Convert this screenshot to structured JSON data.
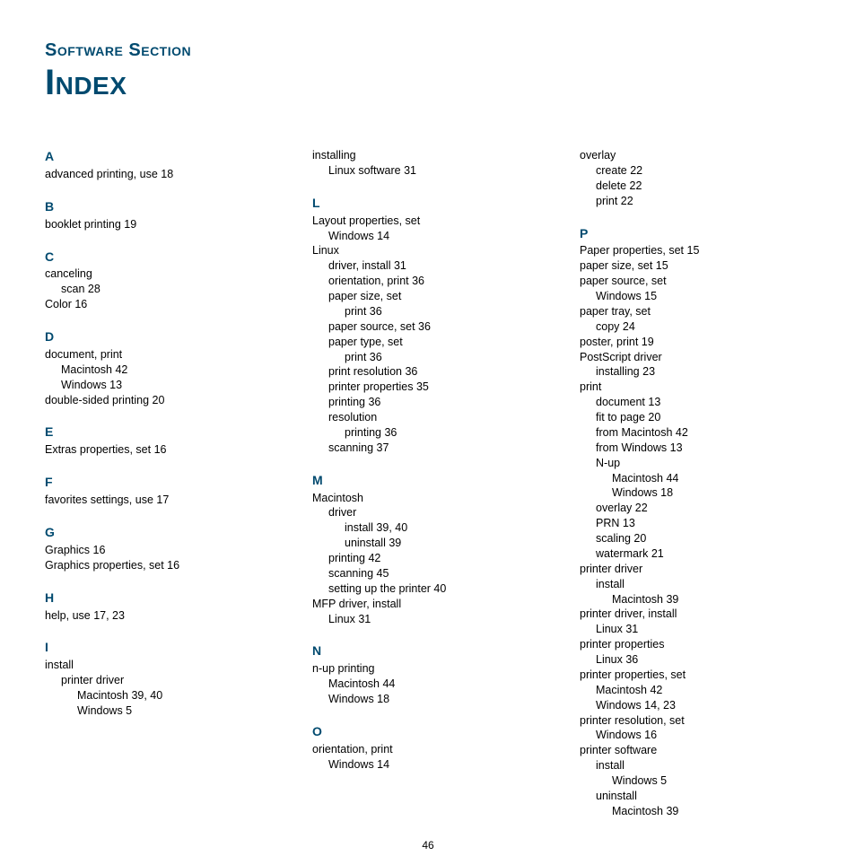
{
  "section_title": "Software Section",
  "main_title": "Index",
  "page_number": "46",
  "col1": [
    {
      "type": "letter",
      "text": "A"
    },
    {
      "type": "entry",
      "level": 0,
      "text": "advanced printing, use 18"
    },
    {
      "type": "letter",
      "text": "B"
    },
    {
      "type": "entry",
      "level": 0,
      "text": "booklet printing 19"
    },
    {
      "type": "letter",
      "text": "C"
    },
    {
      "type": "entry",
      "level": 0,
      "text": "canceling"
    },
    {
      "type": "entry",
      "level": 1,
      "text": "scan 28"
    },
    {
      "type": "entry",
      "level": 0,
      "text": "Color 16"
    },
    {
      "type": "letter",
      "text": "D"
    },
    {
      "type": "entry",
      "level": 0,
      "text": "document, print"
    },
    {
      "type": "entry",
      "level": 1,
      "text": "Macintosh 42"
    },
    {
      "type": "entry",
      "level": 1,
      "text": "Windows 13"
    },
    {
      "type": "entry",
      "level": 0,
      "text": "double-sided printing 20"
    },
    {
      "type": "letter",
      "text": "E"
    },
    {
      "type": "entry",
      "level": 0,
      "text": "Extras properties, set 16"
    },
    {
      "type": "letter",
      "text": "F"
    },
    {
      "type": "entry",
      "level": 0,
      "text": "favorites settings, use 17"
    },
    {
      "type": "letter",
      "text": "G"
    },
    {
      "type": "entry",
      "level": 0,
      "text": "Graphics 16"
    },
    {
      "type": "entry",
      "level": 0,
      "text": "Graphics properties, set 16"
    },
    {
      "type": "letter",
      "text": "H"
    },
    {
      "type": "entry",
      "level": 0,
      "text": "help, use 17, 23"
    },
    {
      "type": "letter",
      "text": "I"
    },
    {
      "type": "entry",
      "level": 0,
      "text": "install"
    },
    {
      "type": "entry",
      "level": 1,
      "text": "printer driver"
    },
    {
      "type": "entry",
      "level": 2,
      "text": "Macintosh 39, 40"
    },
    {
      "type": "entry",
      "level": 2,
      "text": "Windows 5"
    }
  ],
  "col2": [
    {
      "type": "entry",
      "level": 0,
      "text": "installing"
    },
    {
      "type": "entry",
      "level": 1,
      "text": "Linux software 31"
    },
    {
      "type": "letter",
      "text": "L"
    },
    {
      "type": "entry",
      "level": 0,
      "text": "Layout properties, set"
    },
    {
      "type": "entry",
      "level": 1,
      "text": "Windows 14"
    },
    {
      "type": "entry",
      "level": 0,
      "text": "Linux"
    },
    {
      "type": "entry",
      "level": 1,
      "text": "driver, install 31"
    },
    {
      "type": "entry",
      "level": 1,
      "text": "orientation, print 36"
    },
    {
      "type": "entry",
      "level": 1,
      "text": "paper size, set"
    },
    {
      "type": "entry",
      "level": 2,
      "text": "print 36"
    },
    {
      "type": "entry",
      "level": 1,
      "text": "paper source, set 36"
    },
    {
      "type": "entry",
      "level": 1,
      "text": "paper type, set"
    },
    {
      "type": "entry",
      "level": 2,
      "text": "print 36"
    },
    {
      "type": "entry",
      "level": 1,
      "text": "print resolution 36"
    },
    {
      "type": "entry",
      "level": 1,
      "text": "printer properties 35"
    },
    {
      "type": "entry",
      "level": 1,
      "text": "printing 36"
    },
    {
      "type": "entry",
      "level": 1,
      "text": "resolution"
    },
    {
      "type": "entry",
      "level": 2,
      "text": "printing 36"
    },
    {
      "type": "entry",
      "level": 1,
      "text": "scanning 37"
    },
    {
      "type": "letter",
      "text": "M"
    },
    {
      "type": "entry",
      "level": 0,
      "text": "Macintosh"
    },
    {
      "type": "entry",
      "level": 1,
      "text": "driver"
    },
    {
      "type": "entry",
      "level": 2,
      "text": "install 39, 40"
    },
    {
      "type": "entry",
      "level": 2,
      "text": "uninstall 39"
    },
    {
      "type": "entry",
      "level": 1,
      "text": "printing 42"
    },
    {
      "type": "entry",
      "level": 1,
      "text": "scanning 45"
    },
    {
      "type": "entry",
      "level": 1,
      "text": "setting up the printer 40"
    },
    {
      "type": "entry",
      "level": 0,
      "text": "MFP driver, install"
    },
    {
      "type": "entry",
      "level": 1,
      "text": "Linux 31"
    },
    {
      "type": "letter",
      "text": "N"
    },
    {
      "type": "entry",
      "level": 0,
      "text": "n-up printing"
    },
    {
      "type": "entry",
      "level": 1,
      "text": "Macintosh 44"
    },
    {
      "type": "entry",
      "level": 1,
      "text": "Windows 18"
    },
    {
      "type": "letter",
      "text": "O"
    },
    {
      "type": "entry",
      "level": 0,
      "text": "orientation, print"
    },
    {
      "type": "entry",
      "level": 1,
      "text": "Windows 14"
    }
  ],
  "col3": [
    {
      "type": "entry",
      "level": 0,
      "text": "overlay"
    },
    {
      "type": "entry",
      "level": 1,
      "text": "create 22"
    },
    {
      "type": "entry",
      "level": 1,
      "text": "delete 22"
    },
    {
      "type": "entry",
      "level": 1,
      "text": "print 22"
    },
    {
      "type": "letter",
      "text": "P"
    },
    {
      "type": "entry",
      "level": 0,
      "text": "Paper properties, set 15"
    },
    {
      "type": "entry",
      "level": 0,
      "text": "paper size, set 15"
    },
    {
      "type": "entry",
      "level": 0,
      "text": "paper source, set"
    },
    {
      "type": "entry",
      "level": 1,
      "text": "Windows 15"
    },
    {
      "type": "entry",
      "level": 0,
      "text": "paper tray, set"
    },
    {
      "type": "entry",
      "level": 1,
      "text": "copy 24"
    },
    {
      "type": "entry",
      "level": 0,
      "text": "poster, print 19"
    },
    {
      "type": "entry",
      "level": 0,
      "text": "PostScript driver"
    },
    {
      "type": "entry",
      "level": 1,
      "text": "installing 23"
    },
    {
      "type": "entry",
      "level": 0,
      "text": "print"
    },
    {
      "type": "entry",
      "level": 1,
      "text": "document 13"
    },
    {
      "type": "entry",
      "level": 1,
      "text": "fit to page 20"
    },
    {
      "type": "entry",
      "level": 1,
      "text": "from Macintosh 42"
    },
    {
      "type": "entry",
      "level": 1,
      "text": "from Windows 13"
    },
    {
      "type": "entry",
      "level": 1,
      "text": "N-up"
    },
    {
      "type": "entry",
      "level": 2,
      "text": "Macintosh 44"
    },
    {
      "type": "entry",
      "level": 2,
      "text": "Windows 18"
    },
    {
      "type": "entry",
      "level": 1,
      "text": "overlay 22"
    },
    {
      "type": "entry",
      "level": 1,
      "text": "PRN 13"
    },
    {
      "type": "entry",
      "level": 1,
      "text": "scaling 20"
    },
    {
      "type": "entry",
      "level": 1,
      "text": "watermark 21"
    },
    {
      "type": "entry",
      "level": 0,
      "text": "printer driver"
    },
    {
      "type": "entry",
      "level": 1,
      "text": "install"
    },
    {
      "type": "entry",
      "level": 2,
      "text": "Macintosh 39"
    },
    {
      "type": "entry",
      "level": 0,
      "text": "printer driver, install"
    },
    {
      "type": "entry",
      "level": 1,
      "text": "Linux 31"
    },
    {
      "type": "entry",
      "level": 0,
      "text": "printer properties"
    },
    {
      "type": "entry",
      "level": 1,
      "text": "Linux 36"
    },
    {
      "type": "entry",
      "level": 0,
      "text": "printer properties, set"
    },
    {
      "type": "entry",
      "level": 1,
      "text": "Macintosh 42"
    },
    {
      "type": "entry",
      "level": 1,
      "text": "Windows 14, 23"
    },
    {
      "type": "entry",
      "level": 0,
      "text": "printer resolution, set"
    },
    {
      "type": "entry",
      "level": 1,
      "text": "Windows 16"
    },
    {
      "type": "entry",
      "level": 0,
      "text": "printer software"
    },
    {
      "type": "entry",
      "level": 1,
      "text": "install"
    },
    {
      "type": "entry",
      "level": 2,
      "text": "Windows 5"
    },
    {
      "type": "entry",
      "level": 1,
      "text": "uninstall"
    },
    {
      "type": "entry",
      "level": 2,
      "text": "Macintosh 39"
    }
  ]
}
